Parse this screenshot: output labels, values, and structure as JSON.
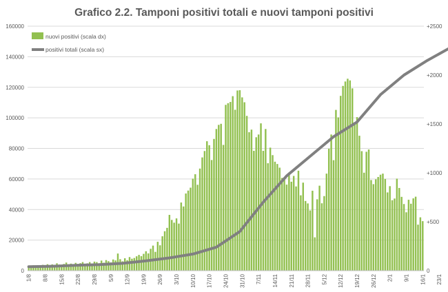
{
  "chart_data": {
    "type": "bar",
    "title": "Grafico 2.2. Tamponi positivi totali e nuovi tamponi positivi",
    "x_ticks": [
      "1/8",
      "8/8",
      "15/8",
      "22/8",
      "29/8",
      "5/9",
      "12/9",
      "19/9",
      "26/9",
      "3/10",
      "10/10",
      "17/10",
      "24/10",
      "31/10",
      "7/11",
      "14/11",
      "21/11",
      "28/11",
      "5/12",
      "12/12",
      "19/12",
      "26/12",
      "2/1",
      "9/1",
      "16/1",
      "23/1",
      "30/1",
      "6/2",
      "13/2"
    ],
    "left_axis": {
      "ticks": [
        "0",
        "20000",
        "40000",
        "60000",
        "80000",
        "100000",
        "120000",
        "140000",
        "160000"
      ],
      "ylim": [
        0,
        160000
      ]
    },
    "right_axis": {
      "ticks": [
        "0",
        "+500",
        "+1000",
        "+1500",
        "+2000",
        "+2500"
      ],
      "ylim": [
        0,
        2500
      ]
    },
    "series": [
      {
        "name": "nuovi positivi (scala dx)",
        "type": "bar",
        "axis": "left",
        "color": "#92c050",
        "values": [
          2500,
          3000,
          3500,
          2800,
          3600,
          2900,
          3800,
          3100,
          4200,
          3300,
          4100,
          3500,
          4800,
          4000,
          3600,
          4400,
          5300,
          4200,
          4600,
          3800,
          5100,
          4400,
          4900,
          5600,
          4200,
          4800,
          5600,
          4500,
          5900,
          5600,
          4800,
          6600,
          5200,
          6900,
          6200,
          5400,
          7300,
          6700,
          11200,
          7500,
          6100,
          8100,
          6800,
          8900,
          7800,
          8300,
          9400,
          10300,
          9500,
          11000,
          12700,
          11300,
          14300,
          16400,
          12300,
          18900,
          16600,
          22500,
          25800,
          28000,
          36500,
          33200,
          31400,
          34200,
          30800,
          44600,
          42000,
          50500,
          52400,
          54300,
          60200,
          63100,
          56200,
          66800,
          74100,
          78300,
          84700,
          82100,
          72400,
          86200,
          92700,
          95400,
          96100,
          82300,
          108500,
          109600,
          110400,
          114200,
          105300,
          117900,
          118100,
          113400,
          110200,
          101300,
          90600,
          92300,
          78400,
          87300,
          89100,
          96400,
          78400,
          92700,
          70300,
          80500,
          75600,
          71300,
          69800,
          67400,
          60700,
          59500,
          56300,
          64200,
          58200,
          62000,
          55100,
          65400,
          49300,
          57600,
          45600,
          44000,
          39400,
          52300,
          21800,
          46700,
          55600,
          44100,
          48800,
          63500,
          79800,
          89100,
          72300,
          105200,
          100300,
          114400,
          120900,
          123800,
          125600,
          124500,
          119300,
          95800,
          100500,
          88300,
          78200,
          64100,
          77800,
          79300,
          59300,
          56600,
          59800,
          61300,
          62800,
          63500,
          60000,
          51200,
          55300,
          46100,
          47200,
          60200,
          54100,
          48300,
          43600,
          38200,
          46400,
          43800,
          47300,
          48400,
          30100,
          34900,
          32400
        ]
      },
      {
        "name": "positivi totali (scala sx)",
        "type": "line",
        "axis": "right",
        "color": "#808080",
        "points": [
          [
            0,
            40
          ],
          [
            10,
            45
          ],
          [
            20,
            55
          ],
          [
            30,
            62
          ],
          [
            40,
            75
          ],
          [
            50,
            100
          ],
          [
            60,
            130
          ],
          [
            70,
            170
          ],
          [
            80,
            240
          ],
          [
            90,
            400
          ],
          [
            100,
            700
          ],
          [
            110,
            970
          ],
          [
            120,
            1170
          ],
          [
            130,
            1370
          ],
          [
            140,
            1520
          ],
          [
            150,
            1800
          ],
          [
            160,
            2000
          ],
          [
            170,
            2150
          ],
          [
            179,
            2270
          ]
        ]
      }
    ]
  }
}
